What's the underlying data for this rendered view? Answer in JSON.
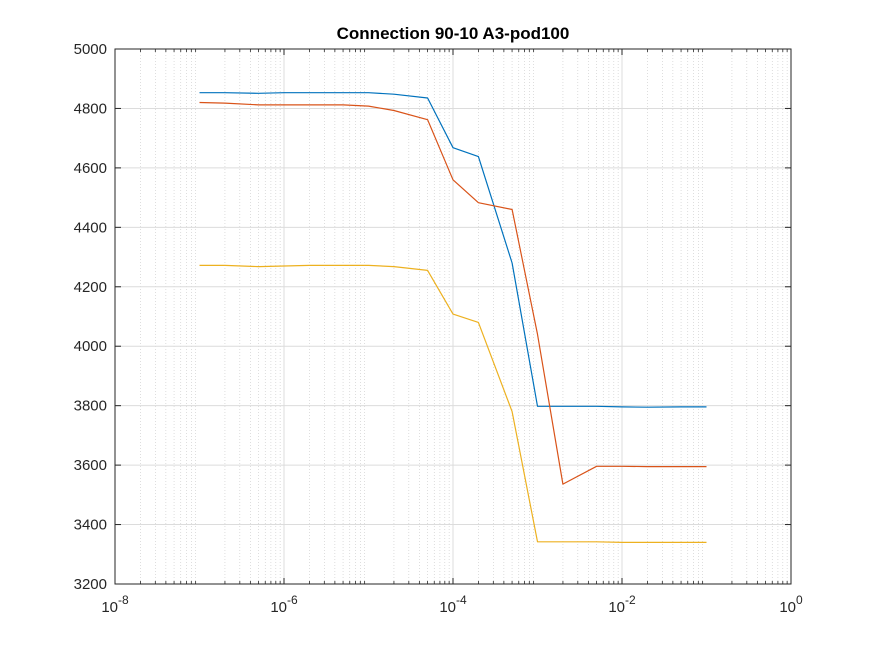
{
  "chart_data": {
    "type": "line",
    "title": "Connection 90-10 A3-pod100",
    "xlabel": "",
    "ylabel": "",
    "xscale": "log",
    "xlim": [
      1e-08,
      1
    ],
    "ylim": [
      3200,
      5000
    ],
    "grid": true,
    "minor_grid": true,
    "legend": "none",
    "x_tick_labels": [
      {
        "base": "10",
        "exp": "-8"
      },
      {
        "base": "10",
        "exp": "-6"
      },
      {
        "base": "10",
        "exp": "-4"
      },
      {
        "base": "10",
        "exp": "-2"
      },
      {
        "base": "10",
        "exp": "0"
      }
    ],
    "y_ticks": [
      3200,
      3400,
      3600,
      3800,
      4000,
      4200,
      4400,
      4600,
      4800,
      5000
    ],
    "x": [
      1e-07,
      2e-07,
      5e-07,
      1e-06,
      2e-06,
      5e-06,
      1e-05,
      2e-05,
      5e-05,
      0.0001,
      0.0002,
      0.0005,
      0.001,
      0.002,
      0.005,
      0.01,
      0.02,
      0.05,
      0.1
    ],
    "series": [
      {
        "color": "#0072BD",
        "values": [
          4853,
          4853,
          4851,
          4853,
          4853,
          4853,
          4853,
          4848,
          4835,
          4668,
          4638,
          4280,
          3798,
          3798,
          3798,
          3796,
          3795,
          3796,
          3796
        ]
      },
      {
        "color": "#D95319",
        "values": [
          4820,
          4818,
          4812,
          4812,
          4812,
          4812,
          4808,
          4793,
          4762,
          4560,
          4483,
          4460,
          4040,
          3536,
          3596,
          3596,
          3595,
          3595,
          3595
        ]
      },
      {
        "color": "#EDB120",
        "values": [
          4272,
          4272,
          4268,
          4270,
          4272,
          4272,
          4272,
          4268,
          4255,
          4108,
          4080,
          3780,
          3342,
          3342,
          3342,
          3340,
          3340,
          3340,
          3340
        ]
      }
    ]
  }
}
